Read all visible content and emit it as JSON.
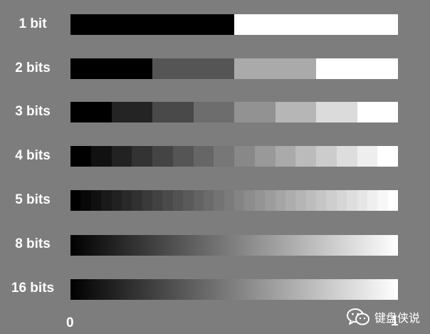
{
  "diagram": {
    "rows": [
      {
        "label": "1 bit",
        "bits": 1
      },
      {
        "label": "2 bits",
        "bits": 2
      },
      {
        "label": "3 bits",
        "bits": 3
      },
      {
        "label": "4 bits",
        "bits": 4
      },
      {
        "label": "5 bits",
        "bits": 5
      },
      {
        "label": "8 bits",
        "bits": 8
      },
      {
        "label": "16 bits",
        "bits": 16
      }
    ],
    "axis": {
      "min_label": "0",
      "max_label": "1"
    }
  },
  "watermark": {
    "text": "键盘侠说",
    "icon": "wechat-icon"
  },
  "colors": {
    "background": "#7d7d7d",
    "text": "#ffffff",
    "black": "#000000",
    "white": "#ffffff"
  }
}
